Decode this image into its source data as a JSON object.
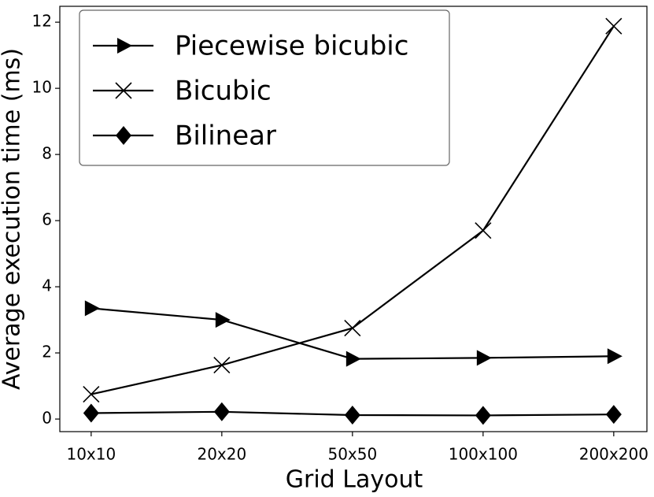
{
  "chart_data": {
    "type": "line",
    "xlabel": "Grid Layout",
    "ylabel": "Average execution time (ms)",
    "categories": [
      "10x10",
      "20x20",
      "50x50",
      "100x100",
      "200x200"
    ],
    "series": [
      {
        "name": "Piecewise bicubic",
        "color": "#000000",
        "marker": "triangle-right",
        "values": [
          3.35,
          3.0,
          1.82,
          1.85,
          1.9
        ]
      },
      {
        "name": "Bicubic",
        "color": "#000000",
        "marker": "x",
        "values": [
          0.75,
          1.63,
          2.75,
          5.7,
          11.88
        ]
      },
      {
        "name": "Bilinear",
        "color": "#000000",
        "marker": "diamond",
        "values": [
          0.18,
          0.22,
          0.12,
          0.11,
          0.14
        ]
      }
    ],
    "ylim": [
      -0.38,
      12.48
    ],
    "yticks": [
      0,
      2,
      4,
      6,
      8,
      10,
      12
    ],
    "legend": "upper left"
  }
}
